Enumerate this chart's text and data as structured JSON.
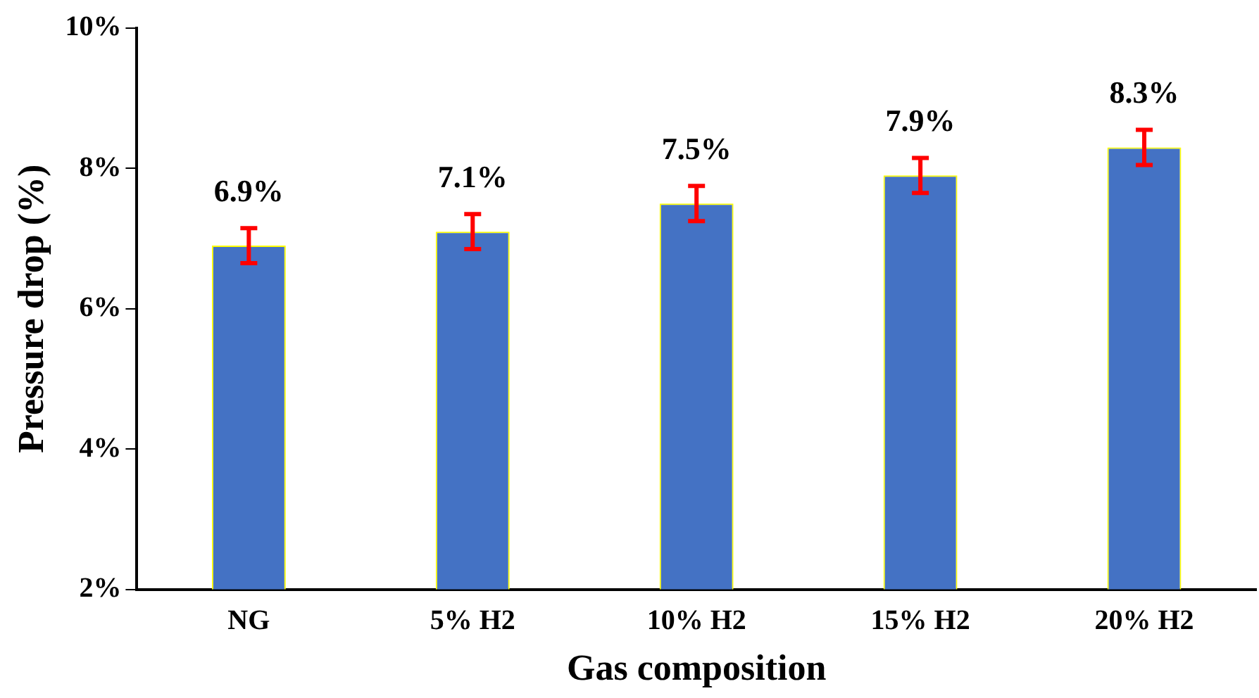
{
  "chart_data": {
    "type": "bar",
    "xlabel": "Gas composition",
    "ylabel": "Pressure drop (%)",
    "categories": [
      "NG",
      "5% H2",
      "10% H2",
      "15% H2",
      "20% H2"
    ],
    "values": [
      6.9,
      7.1,
      7.5,
      7.9,
      8.3
    ],
    "errors": [
      0.25,
      0.25,
      0.25,
      0.25,
      0.25
    ],
    "value_labels": [
      "6.9%",
      "7.1%",
      "7.5%",
      "7.9%",
      "8.3%"
    ],
    "color": "#4472c4",
    "ylim": [
      2,
      10
    ],
    "yticks": [
      {
        "value": 2,
        "label": "2%"
      },
      {
        "value": 4,
        "label": "4%"
      },
      {
        "value": 6,
        "label": "6%"
      },
      {
        "value": 8,
        "label": "8%"
      },
      {
        "value": 10,
        "label": "10%"
      }
    ],
    "grid": false,
    "legend": false
  }
}
